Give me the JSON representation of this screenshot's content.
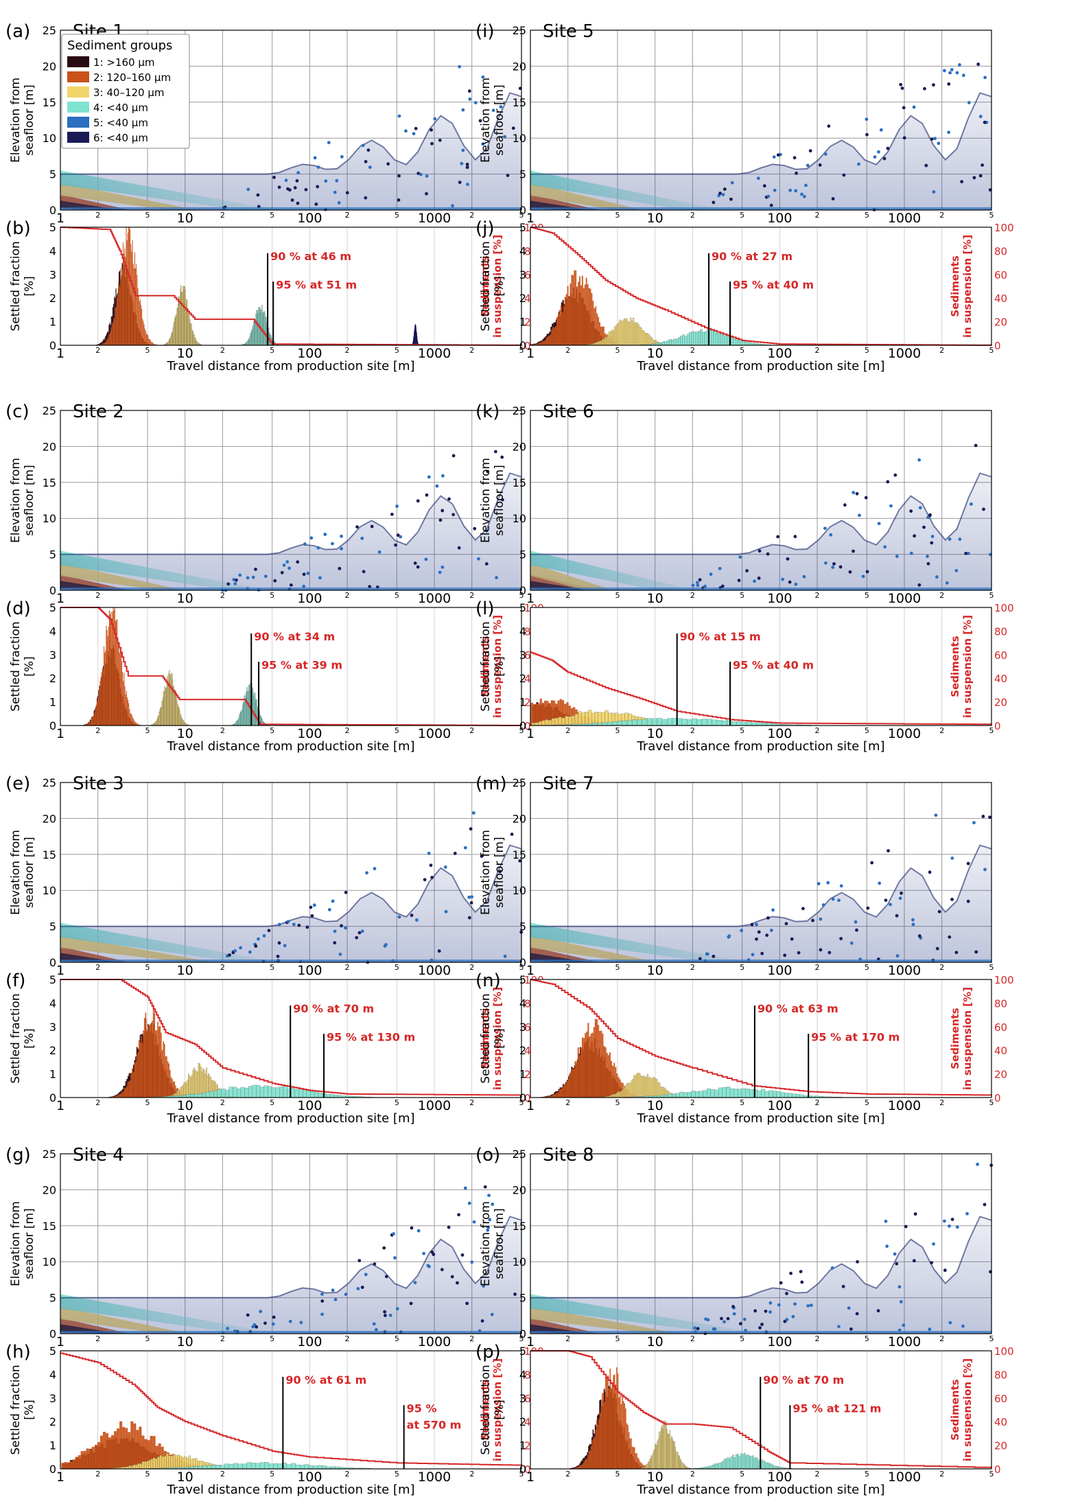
{
  "figure": {
    "x_axis_label": "Travel distance from production site [m]",
    "elevation_label_line1": "Elevation from",
    "elevation_label_line2": "seafloor [m]",
    "settled_label_line1": "Settled fraction",
    "settled_label_line2": "[%]",
    "suspension_label_line1": "Sediments",
    "suspension_label_line2": "in suspension [%]",
    "legend_title": "Sediment groups",
    "x_major_ticks": [
      "1",
      "10",
      "100",
      "1000"
    ],
    "x_minor_labels": [
      "2",
      "5"
    ],
    "elevation_ticks": [
      "0",
      "5",
      "10",
      "15",
      "20",
      "25"
    ],
    "settled_ticks": [
      "0",
      "1",
      "2",
      "3",
      "4",
      "5"
    ],
    "suspension_ticks": [
      "0",
      "20",
      "40",
      "60",
      "80",
      "100"
    ]
  },
  "legend": [
    {
      "label": "1: >160 µm",
      "color": "#2a0a12"
    },
    {
      "label": "2: 120–160 µm",
      "color": "#c8521a"
    },
    {
      "label": "3: 40–120 µm",
      "color": "#f2d468"
    },
    {
      "label": "4: <40 µm",
      "color": "#7ee3d0"
    },
    {
      "label": "5: <40 µm",
      "color": "#2a6fc0"
    },
    {
      "label": "6: <40 µm",
      "color": "#1a1a55"
    }
  ],
  "colors": {
    "g1": "#2a0a12",
    "g2": "#c8521a",
    "g3": "#f2d468",
    "g4": "#7ee3d0",
    "g5": "#2a6fc0",
    "g6": "#1a1a55",
    "suspension": "#d62728",
    "grid": "#9a9a9a"
  },
  "chart_data": [
    {
      "type": "histogram+line",
      "site": "Site 1",
      "panel_top": "(a)",
      "panel_bottom": "(b)",
      "xrange_m": [
        1,
        5000
      ],
      "elevation_ylim": [
        0,
        25
      ],
      "settled_ylim": [
        0,
        5
      ],
      "suspension_ylim": [
        0,
        100
      ],
      "ann90": "90 % at 46 m",
      "ann95": "95 % at 51 m",
      "d90_m": 46,
      "d95_m": 51,
      "groups": [
        {
          "group": 1,
          "peak_m": 3.2,
          "width": 0.07,
          "height": 3.2
        },
        {
          "group": 2,
          "peak_m": 3.5,
          "width": 0.07,
          "height": 4.6
        },
        {
          "group": 3,
          "peak_m": 9.5,
          "width": 0.05,
          "height": 2.3
        },
        {
          "group": 4,
          "peak_m": 40,
          "width": 0.05,
          "height": 1.6
        },
        {
          "group": 6,
          "peak_m": 700,
          "width": 0.01,
          "height": 0.8
        }
      ],
      "suspension_curve": [
        [
          1,
          100
        ],
        [
          2.5,
          98
        ],
        [
          3,
          80
        ],
        [
          4,
          42
        ],
        [
          8,
          42
        ],
        [
          12,
          22
        ],
        [
          35,
          22
        ],
        [
          50,
          1
        ],
        [
          5000,
          0
        ]
      ]
    },
    {
      "type": "histogram+line",
      "site": "Site 2",
      "panel_top": "(c)",
      "panel_bottom": "(d)",
      "xrange_m": [
        1,
        5000
      ],
      "elevation_ylim": [
        0,
        25
      ],
      "settled_ylim": [
        0,
        5
      ],
      "suspension_ylim": [
        0,
        100
      ],
      "ann90": "90 % at 34 m",
      "ann95": "95 % at 39 m",
      "d90_m": 34,
      "d95_m": 39,
      "groups": [
        {
          "group": 1,
          "peak_m": 2.5,
          "width": 0.07,
          "height": 3.2
        },
        {
          "group": 2,
          "peak_m": 2.6,
          "width": 0.07,
          "height": 4.8
        },
        {
          "group": 3,
          "peak_m": 7.5,
          "width": 0.05,
          "height": 2.1
        },
        {
          "group": 4,
          "peak_m": 33,
          "width": 0.05,
          "height": 1.7
        }
      ],
      "suspension_curve": [
        [
          1,
          100
        ],
        [
          2,
          100
        ],
        [
          2.5,
          90
        ],
        [
          3.5,
          42
        ],
        [
          6.5,
          42
        ],
        [
          9,
          22
        ],
        [
          30,
          22
        ],
        [
          40,
          1
        ],
        [
          5000,
          0
        ]
      ]
    },
    {
      "type": "histogram+line",
      "site": "Site 3",
      "panel_top": "(e)",
      "panel_bottom": "(f)",
      "xrange_m": [
        1,
        5000
      ],
      "elevation_ylim": [
        0,
        25
      ],
      "settled_ylim": [
        0,
        5
      ],
      "suspension_ylim": [
        0,
        100
      ],
      "ann90": "90 % at 70 m",
      "ann95": "95 % at 130 m",
      "d90_m": 70,
      "d95_m": 130,
      "groups": [
        {
          "group": 1,
          "peak_m": 5,
          "width": 0.1,
          "height": 3.0
        },
        {
          "group": 2,
          "peak_m": 5.3,
          "width": 0.1,
          "height": 3.5
        },
        {
          "group": 3,
          "peak_m": 13,
          "width": 0.1,
          "height": 1.3
        },
        {
          "group": 4,
          "peak_m": 40,
          "width": 0.35,
          "height": 0.5
        }
      ],
      "suspension_curve": [
        [
          1,
          100
        ],
        [
          3,
          100
        ],
        [
          5,
          85
        ],
        [
          7,
          55
        ],
        [
          12,
          45
        ],
        [
          20,
          25
        ],
        [
          50,
          12
        ],
        [
          100,
          6
        ],
        [
          200,
          3
        ],
        [
          5000,
          2
        ]
      ]
    },
    {
      "type": "histogram+line",
      "site": "Site 4",
      "panel_top": "(g)",
      "panel_bottom": "(h)",
      "xrange_m": [
        1,
        5000
      ],
      "elevation_ylim": [
        0,
        25
      ],
      "settled_ylim": [
        0,
        5
      ],
      "suspension_ylim": [
        0,
        100
      ],
      "ann90": "90 % at 61 m",
      "ann95": "95 %",
      "ann95_line2": "at 570 m",
      "d90_m": 61,
      "d95_m": 570,
      "groups": [
        {
          "group": 1,
          "peak_m": 3,
          "width": 0.25,
          "height": 1.2
        },
        {
          "group": 2,
          "peak_m": 3.3,
          "width": 0.25,
          "height": 1.8
        },
        {
          "group": 3,
          "peak_m": 8,
          "width": 0.2,
          "height": 0.6
        },
        {
          "group": 4,
          "peak_m": 40,
          "width": 0.4,
          "height": 0.25
        }
      ],
      "suspension_curve": [
        [
          1,
          98
        ],
        [
          2,
          90
        ],
        [
          4,
          70
        ],
        [
          6,
          52
        ],
        [
          10,
          40
        ],
        [
          20,
          28
        ],
        [
          50,
          15
        ],
        [
          100,
          10
        ],
        [
          500,
          5
        ],
        [
          5000,
          3
        ]
      ]
    },
    {
      "type": "histogram+line",
      "site": "Site 5",
      "panel_top": "(i)",
      "panel_bottom": "(j)",
      "xrange_m": [
        1,
        5000
      ],
      "elevation_ylim": [
        0,
        25
      ],
      "settled_ylim": [
        0,
        5
      ],
      "suspension_ylim": [
        0,
        100
      ],
      "ann90": "90 % at 27 m",
      "ann95": "95 % at 40 m",
      "d90_m": 27,
      "d95_m": 40,
      "groups": [
        {
          "group": 1,
          "peak_m": 2.2,
          "width": 0.12,
          "height": 2.2
        },
        {
          "group": 2,
          "peak_m": 2.4,
          "width": 0.12,
          "height": 2.9
        },
        {
          "group": 3,
          "peak_m": 6,
          "width": 0.12,
          "height": 1.1
        },
        {
          "group": 4,
          "peak_m": 25,
          "width": 0.2,
          "height": 0.6
        }
      ],
      "suspension_curve": [
        [
          1,
          100
        ],
        [
          1.5,
          95
        ],
        [
          2.5,
          75
        ],
        [
          4,
          55
        ],
        [
          7,
          40
        ],
        [
          12,
          30
        ],
        [
          25,
          15
        ],
        [
          50,
          4
        ],
        [
          100,
          1
        ],
        [
          5000,
          0
        ]
      ]
    },
    {
      "type": "histogram+line",
      "site": "Site 6",
      "panel_top": "(k)",
      "panel_bottom": "(l)",
      "xrange_m": [
        1,
        5000
      ],
      "elevation_ylim": [
        0,
        25
      ],
      "settled_ylim": [
        0,
        5
      ],
      "suspension_ylim": [
        0,
        100
      ],
      "ann90": "90 % at 15 m",
      "ann95": "95 % at 40 m",
      "d90_m": 15,
      "d95_m": 40,
      "groups": [
        {
          "group": 1,
          "peak_m": 1.2,
          "width": 0.18,
          "height": 0.9
        },
        {
          "group": 2,
          "peak_m": 1.4,
          "width": 0.2,
          "height": 1.1
        },
        {
          "group": 3,
          "peak_m": 3.5,
          "width": 0.3,
          "height": 0.6
        },
        {
          "group": 4,
          "peak_m": 15,
          "width": 0.45,
          "height": 0.3
        }
      ],
      "suspension_curve": [
        [
          1,
          62
        ],
        [
          1.5,
          55
        ],
        [
          2,
          45
        ],
        [
          4,
          32
        ],
        [
          8,
          22
        ],
        [
          15,
          12
        ],
        [
          40,
          5
        ],
        [
          100,
          2
        ],
        [
          5000,
          1
        ]
      ]
    },
    {
      "type": "histogram+line",
      "site": "Site 7",
      "panel_top": "(m)",
      "panel_bottom": "(n)",
      "xrange_m": [
        1,
        5000
      ],
      "elevation_ylim": [
        0,
        25
      ],
      "settled_ylim": [
        0,
        5
      ],
      "suspension_ylim": [
        0,
        100
      ],
      "ann90": "90 % at 63 m",
      "ann95": "95 % at 170 m",
      "d90_m": 63,
      "d95_m": 170,
      "groups": [
        {
          "group": 1,
          "peak_m": 3,
          "width": 0.13,
          "height": 2.3
        },
        {
          "group": 2,
          "peak_m": 3.2,
          "width": 0.13,
          "height": 3.0
        },
        {
          "group": 3,
          "peak_m": 8,
          "width": 0.12,
          "height": 1.0
        },
        {
          "group": 4,
          "peak_m": 40,
          "width": 0.35,
          "height": 0.4
        }
      ],
      "suspension_curve": [
        [
          1,
          100
        ],
        [
          1.5,
          96
        ],
        [
          3,
          75
        ],
        [
          5,
          50
        ],
        [
          10,
          35
        ],
        [
          20,
          25
        ],
        [
          60,
          10
        ],
        [
          170,
          5
        ],
        [
          500,
          3
        ],
        [
          5000,
          2
        ]
      ]
    },
    {
      "type": "histogram+line",
      "site": "Site 8",
      "panel_top": "(o)",
      "panel_bottom": "(p)",
      "xrange_m": [
        1,
        5000
      ],
      "elevation_ylim": [
        0,
        25
      ],
      "settled_ylim": [
        0,
        5
      ],
      "suspension_ylim": [
        0,
        100
      ],
      "ann90": "90 % at 70 m",
      "ann95": "95 % at 121 m",
      "d90_m": 70,
      "d95_m": 121,
      "groups": [
        {
          "group": 1,
          "peak_m": 4.2,
          "width": 0.1,
          "height": 3.3
        },
        {
          "group": 2,
          "peak_m": 4.5,
          "width": 0.1,
          "height": 4.0
        },
        {
          "group": 3,
          "peak_m": 12,
          "width": 0.07,
          "height": 1.8
        },
        {
          "group": 4,
          "peak_m": 50,
          "width": 0.15,
          "height": 0.6
        }
      ],
      "suspension_curve": [
        [
          1,
          100
        ],
        [
          2,
          100
        ],
        [
          3,
          95
        ],
        [
          5,
          65
        ],
        [
          8,
          48
        ],
        [
          12,
          38
        ],
        [
          20,
          38
        ],
        [
          40,
          35
        ],
        [
          80,
          15
        ],
        [
          120,
          5
        ],
        [
          5000,
          1
        ]
      ]
    }
  ]
}
